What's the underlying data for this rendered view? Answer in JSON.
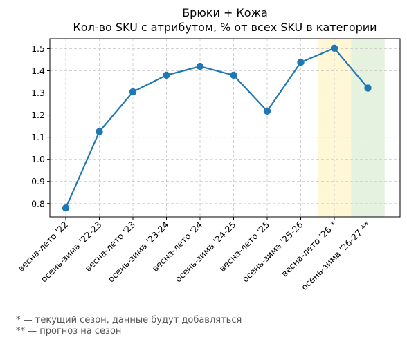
{
  "chart_data": {
    "type": "line",
    "title": "Брюки + Кожа",
    "subtitle": "Кол-во SKU с атрибутом, % от всех SKU в категории",
    "xlabel": "",
    "ylabel": "",
    "categories": [
      "весна-лето '22",
      "осень-зима '22-23",
      "весна-лето '23",
      "осень-зима '23-24",
      "весна-лето '24",
      "осень-зима '24-25",
      "весна-лето '25",
      "осень-зима '25-26",
      "весна-лето '26 *",
      "осень-зима '26-27 **"
    ],
    "series": [
      {
        "values": [
          0.78,
          1.125,
          1.305,
          1.38,
          1.42,
          1.38,
          1.218,
          1.438,
          1.502,
          1.322
        ]
      }
    ],
    "ylim": [
      0.74,
      1.545
    ],
    "yticks": [
      "0.8",
      "0.9",
      "1.0",
      "1.1",
      "1.2",
      "1.3",
      "1.4",
      "1.5"
    ],
    "grid": true,
    "line_color": "#1f77b4",
    "highlights": [
      {
        "category_index": 8,
        "color": "#fff7d6"
      },
      {
        "category_index": 9,
        "color": "#e5f2e0"
      }
    ]
  },
  "footnotes": {
    "current_season": "* — текущий сезон, данные будут добавляться",
    "forecast": "** — прогноз на сезон"
  }
}
